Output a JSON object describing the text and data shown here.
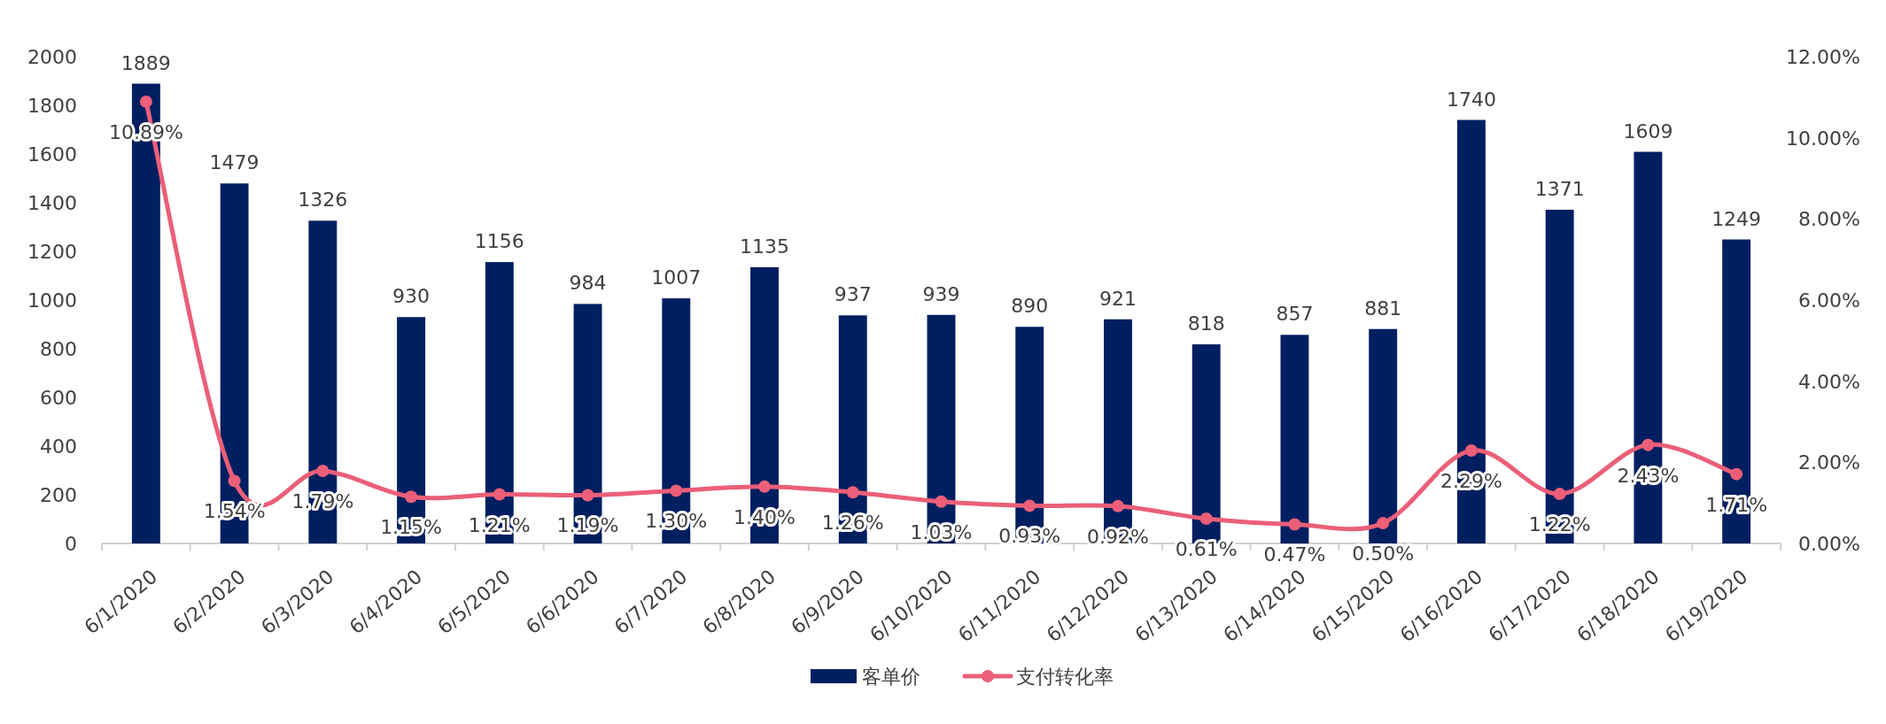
{
  "chart_data": {
    "type": "bar",
    "categories": [
      "6/1/2020",
      "6/2/2020",
      "6/3/2020",
      "6/4/2020",
      "6/5/2020",
      "6/6/2020",
      "6/7/2020",
      "6/8/2020",
      "6/9/2020",
      "6/10/2020",
      "6/11/2020",
      "6/12/2020",
      "6/13/2020",
      "6/14/2020",
      "6/15/2020",
      "6/16/2020",
      "6/17/2020",
      "6/18/2020",
      "6/19/2020"
    ],
    "series": [
      {
        "name": "客单价",
        "color": "#001f60",
        "values": [
          1889,
          1479,
          1326,
          930,
          1156,
          984,
          1007,
          1135,
          937,
          939,
          890,
          921,
          818,
          857,
          881,
          1740,
          1371,
          1609,
          1249
        ],
        "value_labels": [
          "1889",
          "1479",
          "1326",
          "930",
          "1156",
          "984",
          "1007",
          "1135",
          "937",
          "939",
          "890",
          "921",
          "818",
          "857",
          "881",
          "1740",
          "1371",
          "1609",
          "1249"
        ]
      },
      {
        "name": "支付转化率",
        "type": "line",
        "axis": "y2",
        "color": "#eb5f78",
        "marker": "circle",
        "values": [
          10.89,
          1.54,
          1.79,
          1.15,
          1.21,
          1.19,
          1.3,
          1.4,
          1.26,
          1.03,
          0.93,
          0.92,
          0.61,
          0.47,
          0.5,
          2.29,
          1.22,
          2.43,
          1.71
        ],
        "value_labels": [
          "10.89%",
          "1.54%",
          "1.79%",
          "1.15%",
          "1.21%",
          "1.19%",
          "1.30%",
          "1.40%",
          "1.26%",
          "1.03%",
          "0.93%",
          "0.92%",
          "0.61%",
          "0.47%",
          "0.50%",
          "2.29%",
          "1.22%",
          "2.43%",
          "1.71%"
        ]
      }
    ],
    "ylim": [
      0,
      2000
    ],
    "yticks": [
      0,
      200,
      400,
      600,
      800,
      1000,
      1200,
      1400,
      1600,
      1800,
      2000
    ],
    "y2lim": [
      0,
      12
    ],
    "y2ticks": [
      {
        "value": 0,
        "label": "0.00%"
      },
      {
        "value": 2,
        "label": "2.00%"
      },
      {
        "value": 4,
        "label": "4.00%"
      },
      {
        "value": 6,
        "label": "6.00%"
      },
      {
        "value": 8,
        "label": "8.00%"
      },
      {
        "value": 10,
        "label": "10.00%"
      },
      {
        "value": 12,
        "label": "12.00%"
      }
    ],
    "grid": false,
    "legend": "bottom"
  }
}
